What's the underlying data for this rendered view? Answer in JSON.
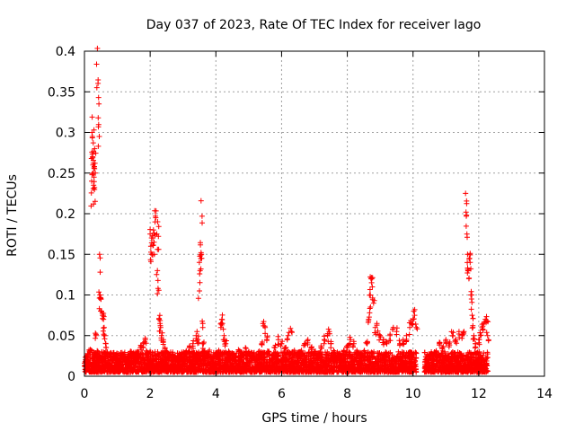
{
  "chart_data": {
    "type": "scatter",
    "title": "Day 037 of 2023, Rate Of TEC Index for receiver Iago",
    "xlabel": "GPS time / hours",
    "ylabel": "ROTI / TECUs",
    "xlim": [
      0,
      14
    ],
    "ylim": [
      0,
      0.4
    ],
    "x_ticks": [
      0,
      2,
      4,
      6,
      8,
      10,
      12,
      14
    ],
    "x_tick_labels": [
      "0",
      "2",
      "4",
      "6",
      "8",
      "10",
      "12",
      "14"
    ],
    "y_ticks": [
      0,
      0.05,
      0.1,
      0.15,
      0.2,
      0.25,
      0.3,
      0.35,
      0.4
    ],
    "y_tick_labels": [
      "0",
      "0.05",
      "0.1",
      "0.15",
      "0.2",
      "0.25",
      "0.3",
      "0.35",
      "0.4"
    ],
    "grid": true,
    "marker": "+",
    "marker_color": "#ff0000",
    "series": [
      {
        "name": "ROTI",
        "points": [
          [
            0.05,
            0.018
          ],
          [
            0.1,
            0.022
          ],
          [
            0.15,
            0.03
          ],
          [
            0.2,
            0.032
          ],
          [
            0.22,
            0.24
          ],
          [
            0.23,
            0.3
          ],
          [
            0.24,
            0.295
          ],
          [
            0.25,
            0.27
          ],
          [
            0.26,
            0.26
          ],
          [
            0.27,
            0.25
          ],
          [
            0.28,
            0.235
          ],
          [
            0.29,
            0.245
          ],
          [
            0.3,
            0.258
          ],
          [
            0.31,
            0.28
          ],
          [
            0.32,
            0.262
          ],
          [
            0.33,
            0.25
          ],
          [
            0.35,
            0.05
          ],
          [
            0.37,
            0.384
          ],
          [
            0.4,
            0.03
          ],
          [
            0.43,
            0.343
          ],
          [
            0.44,
            0.335
          ],
          [
            0.45,
            0.295
          ],
          [
            0.46,
            0.15
          ],
          [
            0.47,
            0.1
          ],
          [
            0.48,
            0.097
          ],
          [
            0.5,
            0.095
          ],
          [
            0.52,
            0.08
          ],
          [
            0.55,
            0.075
          ],
          [
            0.58,
            0.07
          ],
          [
            0.6,
            0.06
          ],
          [
            0.62,
            0.05
          ],
          [
            0.65,
            0.04
          ],
          [
            0.7,
            0.03
          ],
          [
            0.8,
            0.028
          ],
          [
            0.9,
            0.022
          ],
          [
            1.0,
            0.02
          ],
          [
            1.1,
            0.025
          ],
          [
            1.2,
            0.02
          ],
          [
            1.3,
            0.022
          ],
          [
            1.4,
            0.03
          ],
          [
            1.5,
            0.025
          ],
          [
            1.6,
            0.03
          ],
          [
            1.7,
            0.035
          ],
          [
            1.8,
            0.04
          ],
          [
            1.85,
            0.045
          ],
          [
            1.9,
            0.03
          ],
          [
            2.0,
            0.175
          ],
          [
            2.02,
            0.16
          ],
          [
            2.05,
            0.15
          ],
          [
            2.08,
            0.17
          ],
          [
            2.1,
            0.18
          ],
          [
            2.12,
            0.165
          ],
          [
            2.15,
            0.19
          ],
          [
            2.17,
            0.195
          ],
          [
            2.2,
            0.175
          ],
          [
            2.22,
            0.13
          ],
          [
            2.24,
            0.108
          ],
          [
            2.25,
            0.172
          ],
          [
            2.27,
            0.07
          ],
          [
            2.3,
            0.065
          ],
          [
            2.32,
            0.06
          ],
          [
            2.35,
            0.05
          ],
          [
            2.4,
            0.045
          ],
          [
            2.45,
            0.035
          ],
          [
            2.5,
            0.03
          ],
          [
            2.6,
            0.025
          ],
          [
            2.7,
            0.02
          ],
          [
            2.8,
            0.022
          ],
          [
            2.9,
            0.025
          ],
          [
            3.0,
            0.02
          ],
          [
            3.1,
            0.03
          ],
          [
            3.2,
            0.035
          ],
          [
            3.3,
            0.04
          ],
          [
            3.4,
            0.05
          ],
          [
            3.45,
            0.045
          ],
          [
            3.5,
            0.105
          ],
          [
            3.52,
            0.13
          ],
          [
            3.54,
            0.145
          ],
          [
            3.55,
            0.152
          ],
          [
            3.56,
            0.15
          ],
          [
            3.58,
            0.197
          ],
          [
            3.6,
            0.065
          ],
          [
            3.62,
            0.04
          ],
          [
            3.65,
            0.03
          ],
          [
            3.7,
            0.025
          ],
          [
            3.8,
            0.03
          ],
          [
            3.9,
            0.02
          ],
          [
            4.0,
            0.025
          ],
          [
            4.1,
            0.03
          ],
          [
            4.15,
            0.06
          ],
          [
            4.18,
            0.07
          ],
          [
            4.2,
            0.065
          ],
          [
            4.25,
            0.05
          ],
          [
            4.3,
            0.04
          ],
          [
            4.4,
            0.03
          ],
          [
            4.5,
            0.025
          ],
          [
            4.6,
            0.02
          ],
          [
            4.7,
            0.03
          ],
          [
            4.8,
            0.025
          ],
          [
            4.9,
            0.035
          ],
          [
            5.0,
            0.03
          ],
          [
            5.1,
            0.025
          ],
          [
            5.2,
            0.02
          ],
          [
            5.3,
            0.03
          ],
          [
            5.4,
            0.04
          ],
          [
            5.45,
            0.062
          ],
          [
            5.5,
            0.06
          ],
          [
            5.55,
            0.045
          ],
          [
            5.6,
            0.03
          ],
          [
            5.7,
            0.025
          ],
          [
            5.8,
            0.035
          ],
          [
            5.9,
            0.045
          ],
          [
            6.0,
            0.04
          ],
          [
            6.1,
            0.035
          ],
          [
            6.2,
            0.05
          ],
          [
            6.3,
            0.055
          ],
          [
            6.4,
            0.03
          ],
          [
            6.5,
            0.025
          ],
          [
            6.6,
            0.03
          ],
          [
            6.7,
            0.04
          ],
          [
            6.8,
            0.045
          ],
          [
            6.9,
            0.035
          ],
          [
            7.0,
            0.03
          ],
          [
            7.1,
            0.025
          ],
          [
            7.2,
            0.035
          ],
          [
            7.3,
            0.045
          ],
          [
            7.4,
            0.05
          ],
          [
            7.45,
            0.055
          ],
          [
            7.5,
            0.04
          ],
          [
            7.6,
            0.03
          ],
          [
            7.7,
            0.025
          ],
          [
            7.8,
            0.02
          ],
          [
            7.9,
            0.03
          ],
          [
            8.0,
            0.035
          ],
          [
            8.1,
            0.045
          ],
          [
            8.2,
            0.04
          ],
          [
            8.3,
            0.03
          ],
          [
            8.4,
            0.025
          ],
          [
            8.5,
            0.03
          ],
          [
            8.6,
            0.04
          ],
          [
            8.65,
            0.07
          ],
          [
            8.68,
            0.078
          ],
          [
            8.7,
            0.1
          ],
          [
            8.72,
            0.12
          ],
          [
            8.74,
            0.115
          ],
          [
            8.76,
            0.11
          ],
          [
            8.8,
            0.09
          ],
          [
            8.85,
            0.06
          ],
          [
            8.9,
            0.065
          ],
          [
            9.0,
            0.05
          ],
          [
            9.1,
            0.045
          ],
          [
            9.2,
            0.04
          ],
          [
            9.3,
            0.05
          ],
          [
            9.4,
            0.06
          ],
          [
            9.5,
            0.055
          ],
          [
            9.6,
            0.04
          ],
          [
            9.7,
            0.045
          ],
          [
            9.8,
            0.05
          ],
          [
            9.9,
            0.06
          ],
          [
            9.95,
            0.065
          ],
          [
            10.0,
            0.07
          ],
          [
            10.05,
            0.075
          ],
          [
            10.1,
            0.06
          ],
          [
            10.4,
            0.02
          ],
          [
            10.5,
            0.025
          ],
          [
            10.6,
            0.02
          ],
          [
            10.7,
            0.03
          ],
          [
            10.8,
            0.04
          ],
          [
            10.9,
            0.035
          ],
          [
            11.0,
            0.045
          ],
          [
            11.1,
            0.04
          ],
          [
            11.2,
            0.05
          ],
          [
            11.3,
            0.045
          ],
          [
            11.4,
            0.055
          ],
          [
            11.5,
            0.05
          ],
          [
            11.55,
            0.055
          ],
          [
            11.6,
            0.225
          ],
          [
            11.62,
            0.197
          ],
          [
            11.64,
            0.175
          ],
          [
            11.66,
            0.15
          ],
          [
            11.68,
            0.13
          ],
          [
            11.7,
            0.12
          ],
          [
            11.72,
            0.145
          ],
          [
            11.74,
            0.14
          ],
          [
            11.76,
            0.1
          ],
          [
            11.78,
            0.095
          ],
          [
            11.8,
            0.075
          ],
          [
            11.82,
            0.06
          ],
          [
            11.85,
            0.05
          ],
          [
            11.9,
            0.04
          ],
          [
            12.0,
            0.045
          ],
          [
            12.05,
            0.05
          ],
          [
            12.1,
            0.06
          ],
          [
            12.15,
            0.065
          ],
          [
            12.2,
            0.07
          ],
          [
            12.25,
            0.068
          ],
          [
            12.27,
            0.05
          ]
        ],
        "base_band": {
          "x_ranges": [
            [
              0.0,
              10.1
            ],
            [
              10.35,
              12.28
            ]
          ],
          "y_low": 0.005,
          "y_high": 0.03,
          "count": 4200
        }
      }
    ]
  }
}
